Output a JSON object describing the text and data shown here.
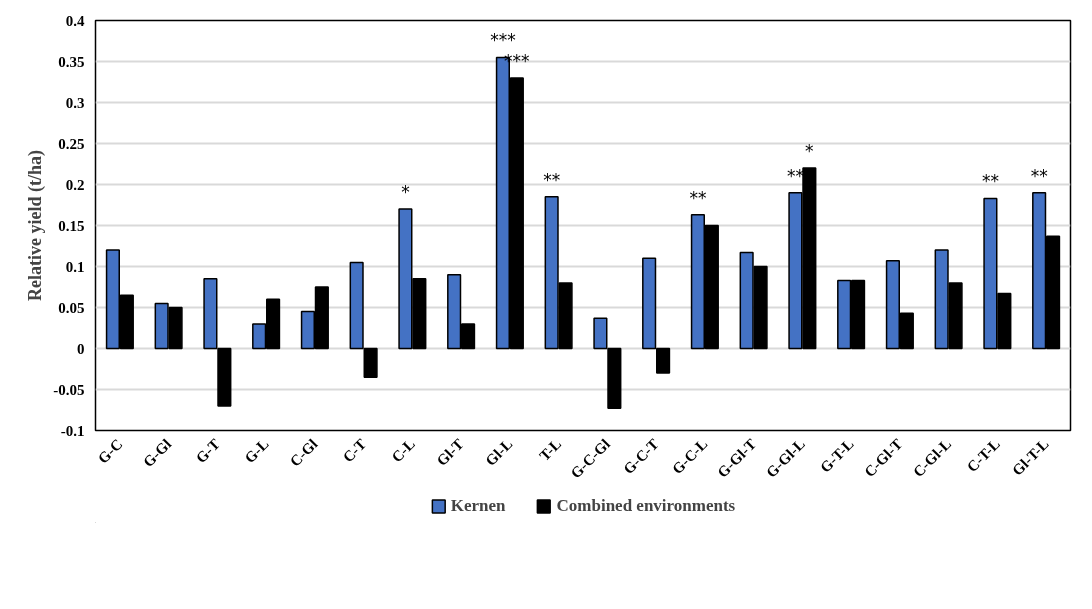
{
  "chart_data": {
    "type": "bar",
    "ylabel": "Relative yield (t/ha)",
    "categories": [
      "G-C",
      "G-Gl",
      "G-T",
      "G-L",
      "C-Gl",
      "C-T",
      "C-L",
      "Gl-T",
      "Gl-L",
      "T-L",
      "G-C-Gl",
      "G-C-T",
      "G-C-L",
      "G-Gl-T",
      "G-Gl-L",
      "G-T-L",
      "C-Gl-T",
      "C-Gl-L",
      "C-T-L",
      "Gl-T-L"
    ],
    "series": [
      {
        "name": "Kernen",
        "color": "#4472c4",
        "values": [
          0.12,
          0.055,
          0.085,
          0.03,
          0.045,
          0.105,
          0.17,
          0.09,
          0.355,
          0.185,
          0.037,
          0.11,
          0.163,
          0.117,
          0.19,
          0.083,
          0.107,
          0.12,
          0.183,
          0.19
        ]
      },
      {
        "name": "Combined environments",
        "color": "#000000",
        "values": [
          0.065,
          0.05,
          -0.07,
          0.06,
          0.075,
          -0.035,
          0.085,
          0.03,
          0.33,
          0.08,
          -0.073,
          -0.03,
          0.15,
          0.1,
          0.22,
          0.083,
          0.043,
          0.08,
          0.067,
          0.137
        ]
      }
    ],
    "ylim": [
      -0.1,
      0.4
    ],
    "yticks": [
      -0.1,
      -0.05,
      0,
      0.05,
      0.1,
      0.15,
      0.2,
      0.25,
      0.3,
      0.35,
      0.4
    ],
    "grid": "y",
    "legend": "bottom",
    "annotations": [
      {
        "text": "*",
        "x": "C-L",
        "y": 0.17
      },
      {
        "text": "***",
        "x": "Gl-L",
        "y": 0.355
      },
      {
        "text": "***",
        "x": "Gl-L",
        "y": 0.33
      },
      {
        "text": "**",
        "x": "T-L",
        "y": 0.185
      },
      {
        "text": "**",
        "x": "G-C-L",
        "y": 0.163
      },
      {
        "text": "**",
        "x": "G-Gl-L",
        "y": 0.19
      },
      {
        "text": "*",
        "x": "G-Gl-L",
        "y": 0.22
      },
      {
        "text": "**",
        "x": "C-T-L",
        "y": 0.183
      },
      {
        "text": "**",
        "x": "Gl-T-L",
        "y": 0.19
      }
    ]
  }
}
